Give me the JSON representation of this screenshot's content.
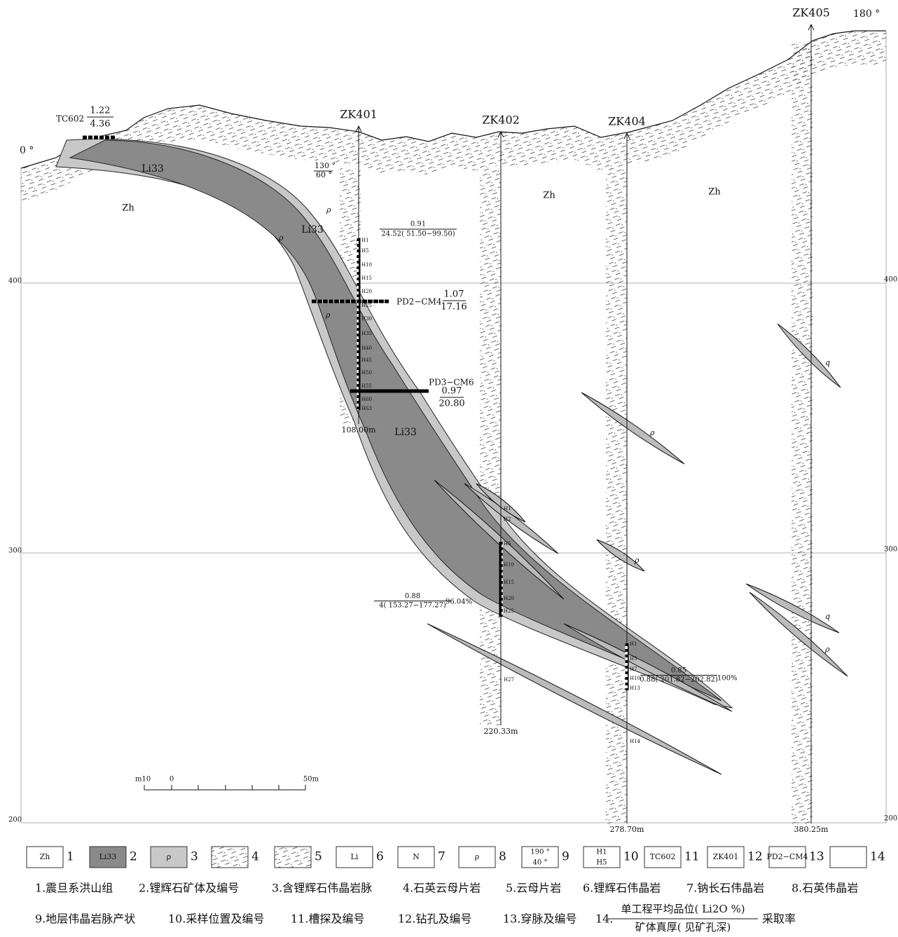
{
  "orientation": {
    "start": "0 °",
    "end": "180 °"
  },
  "elevation_labels": {
    "left": [
      400,
      300,
      200
    ],
    "right": [
      400,
      300,
      200
    ]
  },
  "strata_labels": [
    "Zh",
    "Zh",
    "Zh"
  ],
  "orebody_labels": [
    "Li33",
    "Li33",
    "Li33"
  ],
  "vein_labels": [
    "ρ",
    "ρ",
    "ρ",
    "q",
    "ρ",
    "q",
    "ρ",
    "ρ"
  ],
  "attitude": {
    "dip_direction": "130 °",
    "dip_angle": "60 °"
  },
  "trench": {
    "name": "TC602",
    "grade": "1.22",
    "thickness": "4.36"
  },
  "boreholes": [
    {
      "name": "ZK401",
      "depth": "108.00m",
      "samples": [
        "H1",
        "H5",
        "H10",
        "H15",
        "H20",
        "H25",
        "H30",
        "H35",
        "H40",
        "H45",
        "H50",
        "H55",
        "H60",
        "H63"
      ]
    },
    {
      "name": "ZK402",
      "depth": "220.33m",
      "samples": [
        "H1",
        "H2",
        "H5",
        "H10",
        "H15",
        "H20",
        "H25",
        "H27"
      ]
    },
    {
      "name": "ZK404",
      "depth": "278.70m",
      "samples": [
        "H1",
        "H5",
        "H7",
        "H10",
        "H13",
        "H14"
      ]
    },
    {
      "name": "ZK405",
      "depth": "380.25m"
    }
  ],
  "adits": [
    {
      "name": "PD2−CM4",
      "grade": "1.07",
      "thickness": "17.16"
    },
    {
      "name": "PD3−CM6",
      "grade": "0.97",
      "thickness": "20.80"
    }
  ],
  "intercepts": [
    {
      "grade": "0.91",
      "thickness": "24.52( 51.50−99.50)"
    },
    {
      "grade": "0.88",
      "thickness": "4( 153.27−177.27)",
      "recovery": "96.04%"
    },
    {
      "grade": "0.85",
      "thickness": "0.88( 201.82−202.82)",
      "recovery": "100%"
    }
  ],
  "scale_bar": {
    "left": "m10",
    "zero": "0",
    "end": "50m"
  },
  "legend": {
    "items": [
      {
        "number": "1",
        "symbol": "Zh"
      },
      {
        "number": "2",
        "symbol": "Li33"
      },
      {
        "number": "3",
        "symbol": "ρ"
      },
      {
        "number": "4"
      },
      {
        "number": "5"
      },
      {
        "number": "6",
        "symbol": "Li"
      },
      {
        "number": "7",
        "symbol": "N"
      },
      {
        "number": "8",
        "symbol": "ρ"
      },
      {
        "number": "9",
        "symbol": "190 °",
        "symbol_bottom": "40 °"
      },
      {
        "number": "10",
        "symbol": "H1",
        "symbol_bottom": "H5"
      },
      {
        "number": "11",
        "symbol": "TC602"
      },
      {
        "number": "12",
        "symbol": "ZK401"
      },
      {
        "number": "13",
        "symbol": "PD2−CM4"
      },
      {
        "number": "14"
      }
    ],
    "descriptions": [
      "1.震旦系洪山组",
      "2.锂辉石矿体及编号",
      "3.含锂辉石伟晶岩脉",
      "4.石英云母片岩",
      "5.云母片岩",
      "6.锂辉石伟晶岩",
      "7.钠长石伟晶岩",
      "8.石英伟晶岩",
      "9.地层伟晶岩脉产状",
      "10.采样位置及编号",
      "11.槽探及编号",
      "12.钻孔及编号",
      "13.穿脉及编号"
    ],
    "item14": {
      "prefix": "14.",
      "numerator": "单工程平均品位( Li2O %)",
      "denominator": "矿体真厚( 见矿孔深)",
      "suffix": "采取率"
    }
  }
}
